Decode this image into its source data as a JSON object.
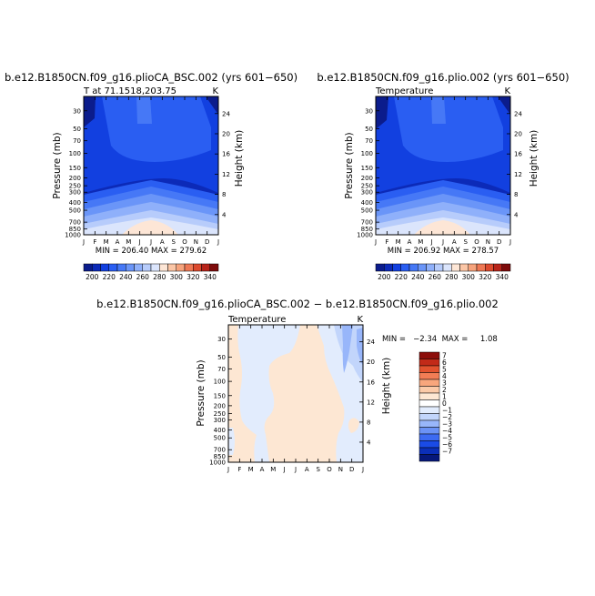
{
  "colors": {
    "abs_scale": [
      "#0b1c8c",
      "#0c2ab8",
      "#1240e0",
      "#2a5ef2",
      "#4678f6",
      "#6a95f8",
      "#8fb0fa",
      "#b7ccfb",
      "#dbe5fc",
      "#fde6d6",
      "#fbc6a6",
      "#f6a37c",
      "#ee7854",
      "#dc4a2e",
      "#b8241a",
      "#7e0b0b"
    ],
    "diff_scale": [
      "#06187a",
      "#0b2fb8",
      "#1a4be6",
      "#3c6af2",
      "#6b92f6",
      "#98b6fa",
      "#c2d5fb",
      "#e2ecfd",
      "#ffffff",
      "#fde7d3",
      "#fbcaa8",
      "#f8a67c",
      "#f27d55",
      "#e2522e",
      "#c22a18",
      "#8c0d0a"
    ],
    "lowest_band": "#0b1c8c"
  },
  "chart_data": [
    {
      "type": "heatmap",
      "title": "b.e12.B1850CN.f09_g16.plioCA_BSC.002 (yrs 601−650)",
      "subtitle_left": "T at 71.1518,203.75",
      "subtitle_right": "K",
      "xlabel": "",
      "ylabel": "Pressure (mb)",
      "ylabel_right": "Height (km)",
      "x_ticks": [
        "J",
        "F",
        "M",
        "A",
        "M",
        "J",
        "J",
        "A",
        "S",
        "O",
        "N",
        "D",
        "J"
      ],
      "y_ticks": [
        "30",
        "50",
        "70",
        "100",
        "150",
        "200",
        "250",
        "300",
        "400",
        "500",
        "700",
        "850",
        "1000"
      ],
      "y_ticks_right": [
        "24",
        "20",
        "16",
        "12",
        "8",
        "4"
      ],
      "ylim": [
        1000,
        20
      ],
      "y_scale": "log",
      "min": 206.4,
      "max": 279.62,
      "minmax_label": "MIN = 206.40  MAX = 279.62",
      "levels": [
        "200",
        "220",
        "240",
        "260",
        "280",
        "300",
        "320",
        "340"
      ],
      "contour_interval": 10
    },
    {
      "type": "heatmap",
      "title": "b.e12.B1850CN.f09_g16.plio.002 (yrs 601−650)",
      "subtitle_left": "Temperature",
      "subtitle_right": "K",
      "xlabel": "",
      "ylabel": "Pressure (mb)",
      "ylabel_right": "Height (km)",
      "x_ticks": [
        "J",
        "F",
        "M",
        "A",
        "M",
        "J",
        "J",
        "A",
        "S",
        "O",
        "N",
        "D",
        "J"
      ],
      "y_ticks": [
        "30",
        "50",
        "70",
        "100",
        "150",
        "200",
        "250",
        "300",
        "400",
        "500",
        "700",
        "850",
        "1000"
      ],
      "y_ticks_right": [
        "24",
        "20",
        "16",
        "12",
        "8",
        "4"
      ],
      "ylim": [
        1000,
        20
      ],
      "y_scale": "log",
      "min": 206.92,
      "max": 278.57,
      "minmax_label": "MIN = 206.92  MAX = 278.57",
      "levels": [
        "200",
        "220",
        "240",
        "260",
        "280",
        "300",
        "320",
        "340"
      ],
      "contour_interval": 10
    },
    {
      "type": "heatmap",
      "title": "b.e12.B1850CN.f09_g16.plioCA_BSC.002  −  b.e12.B1850CN.f09_g16.plio.002",
      "subtitle_left": "Temperature",
      "subtitle_right": "K",
      "xlabel": "",
      "ylabel": "Pressure (mb)",
      "ylabel_right": "Height (km)",
      "x_ticks": [
        "J",
        "F",
        "M",
        "A",
        "M",
        "J",
        "J",
        "A",
        "S",
        "O",
        "N",
        "D",
        "J"
      ],
      "y_ticks": [
        "30",
        "50",
        "70",
        "100",
        "150",
        "200",
        "250",
        "300",
        "400",
        "500",
        "700",
        "850",
        "1000"
      ],
      "y_ticks_right": [
        "24",
        "20",
        "16",
        "12",
        "8",
        "4"
      ],
      "ylim": [
        1000,
        20
      ],
      "y_scale": "log",
      "min": -2.34,
      "max": 1.08,
      "minmax_label": "MIN =   −2.34  MAX =     1.08",
      "levels": [
        "7",
        "6",
        "5",
        "4",
        "3",
        "2",
        "1",
        "0",
        "−1",
        "−2",
        "−3",
        "−4",
        "−5",
        "−6",
        "−7"
      ]
    }
  ]
}
